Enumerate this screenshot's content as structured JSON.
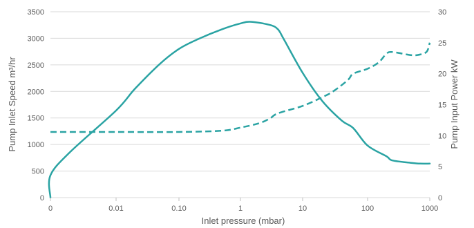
{
  "chart_data": {
    "type": "line",
    "xlabel": "Inlet pressure (mbar)",
    "ylabel_left": "Pump Inlet Speed m³/hr",
    "ylabel_right": "Pump Input Power kW",
    "x_tick_labels": [
      "0",
      "0.01",
      "0.10",
      "1",
      "10",
      "100",
      "1000"
    ],
    "y_left_ticks": [
      0,
      500,
      1000,
      1500,
      2000,
      2500,
      3000,
      3500
    ],
    "y_right_ticks": [
      0,
      5,
      10,
      15,
      20,
      25,
      30
    ],
    "ylim_left": [
      0,
      3500
    ],
    "ylim_right": [
      0,
      30
    ],
    "grid": "horizontal",
    "colors": {
      "series": "#2aa3a3",
      "grid": "#d9d9d9",
      "text": "#595959"
    },
    "series": [
      {
        "axis": "left",
        "style": "solid",
        "points": [
          [
            "0",
            0
          ],
          [
            "0.001",
            420
          ],
          [
            "0.002",
            860
          ],
          [
            "0.01",
            1640
          ],
          [
            "0.02",
            2050
          ],
          [
            "0.05",
            2520
          ],
          [
            "0.10",
            2800
          ],
          [
            "0.2",
            2980
          ],
          [
            "0.5",
            3170
          ],
          [
            "1",
            3280
          ],
          [
            "1.5",
            3310
          ],
          [
            "3",
            3250
          ],
          [
            "4",
            3170
          ],
          [
            "5",
            2980
          ],
          [
            "10",
            2350
          ],
          [
            "20",
            1820
          ],
          [
            "40",
            1450
          ],
          [
            "60",
            1310
          ],
          [
            "100",
            980
          ],
          [
            "200",
            780
          ],
          [
            "250",
            700
          ],
          [
            "500",
            655
          ],
          [
            "700",
            640
          ],
          [
            "1000",
            640
          ]
        ]
      },
      {
        "axis": "right",
        "style": "dashed",
        "points": [
          [
            "0",
            10.6
          ],
          [
            "0.01",
            10.6
          ],
          [
            "0.10",
            10.6
          ],
          [
            "0.5",
            10.8
          ],
          [
            "1",
            11.3
          ],
          [
            "2",
            12.0
          ],
          [
            "3",
            12.8
          ],
          [
            "4",
            13.6
          ],
          [
            "10",
            14.8
          ],
          [
            "20",
            16.2
          ],
          [
            "30",
            17.2
          ],
          [
            "50",
            19.0
          ],
          [
            "60",
            20.0
          ],
          [
            "100",
            20.8
          ],
          [
            "150",
            21.8
          ],
          [
            "200",
            23.2
          ],
          [
            "250",
            23.5
          ],
          [
            "500",
            23.0
          ],
          [
            "700",
            23.1
          ],
          [
            "900",
            23.6
          ],
          [
            "1000",
            25.0
          ]
        ]
      }
    ]
  }
}
